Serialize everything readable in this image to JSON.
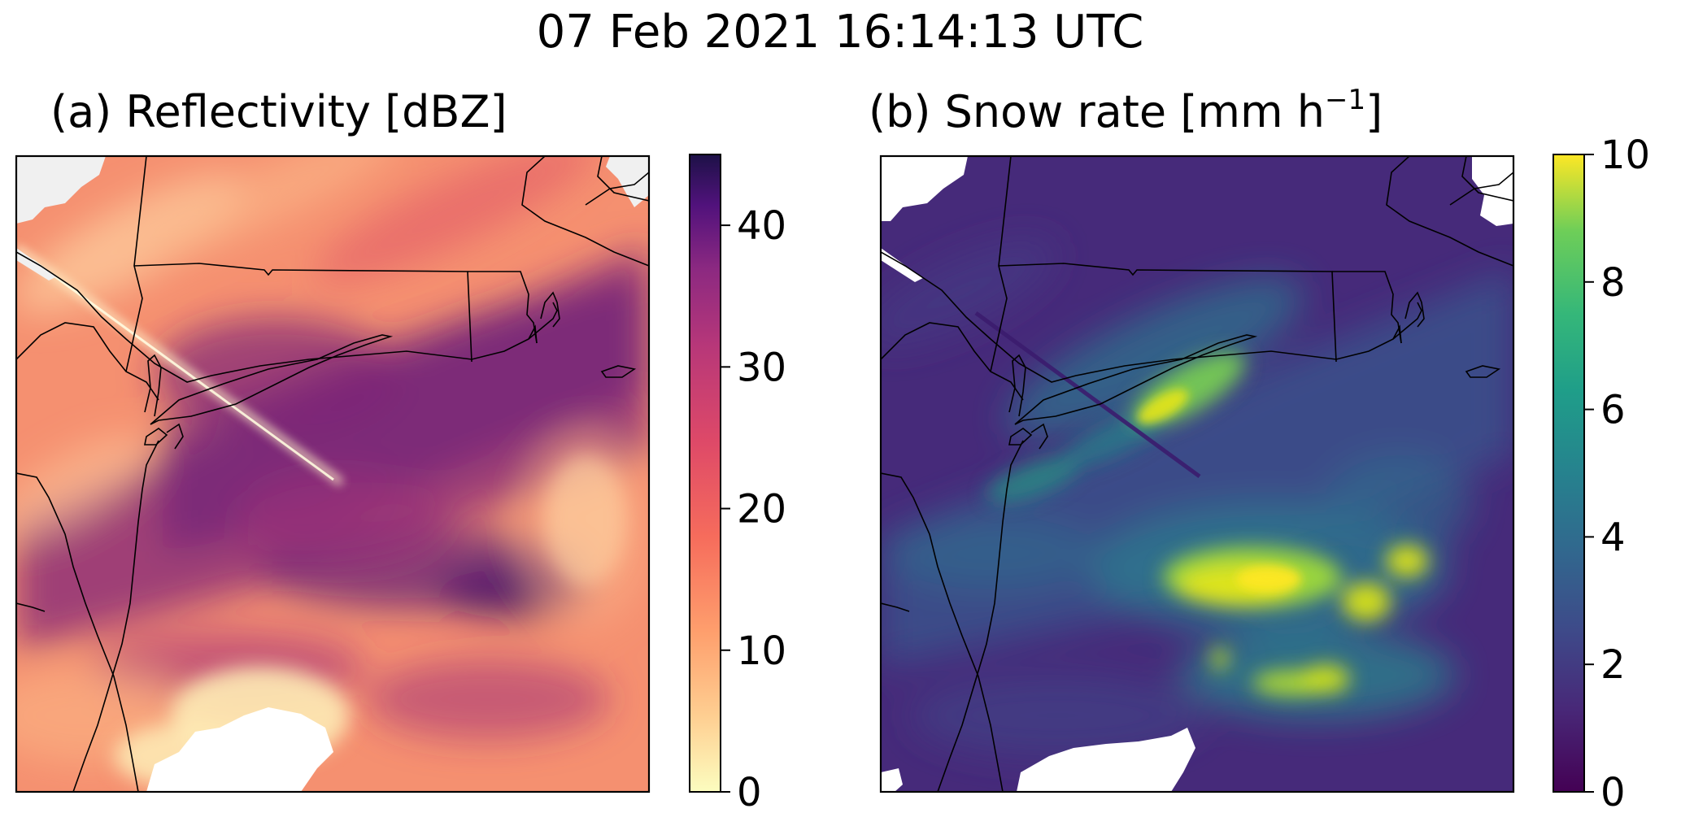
{
  "suptitle": "07 Feb 2021 16:14:13 UTC",
  "panels": [
    {
      "title": "(a) Reflectivity [dBZ]",
      "colormap": "magma_r",
      "colorbar": {
        "ticks": [
          "0",
          "10",
          "20",
          "30",
          "40"
        ],
        "min": 0,
        "max": 45
      }
    },
    {
      "title_main": "(b) Snow rate [mm h",
      "title_sup": "−1",
      "title_end": "]",
      "colormap": "viridis",
      "colorbar": {
        "ticks": [
          "0",
          "2",
          "4",
          "6",
          "8",
          "10"
        ],
        "min": 0,
        "max": 10
      }
    }
  ],
  "chart_data": [
    {
      "type": "heatmap",
      "title": "(a) Reflectivity [dBZ]",
      "variable": "Reflectivity",
      "units": "dBZ",
      "colorbar_range": [
        0,
        45
      ],
      "colorbar_ticks": [
        0,
        10,
        20,
        30,
        40
      ],
      "colormap": "magma_r",
      "missing_color": "#f0f0f0"
    },
    {
      "type": "heatmap",
      "title": "(b) Snow rate [mm h−1]",
      "variable": "Snow rate",
      "units": "mm h−1",
      "colorbar_range": [
        0,
        10
      ],
      "colorbar_ticks": [
        0,
        2,
        4,
        6,
        8,
        10
      ],
      "colormap": "viridis",
      "missing_color": "#ffffff"
    }
  ]
}
